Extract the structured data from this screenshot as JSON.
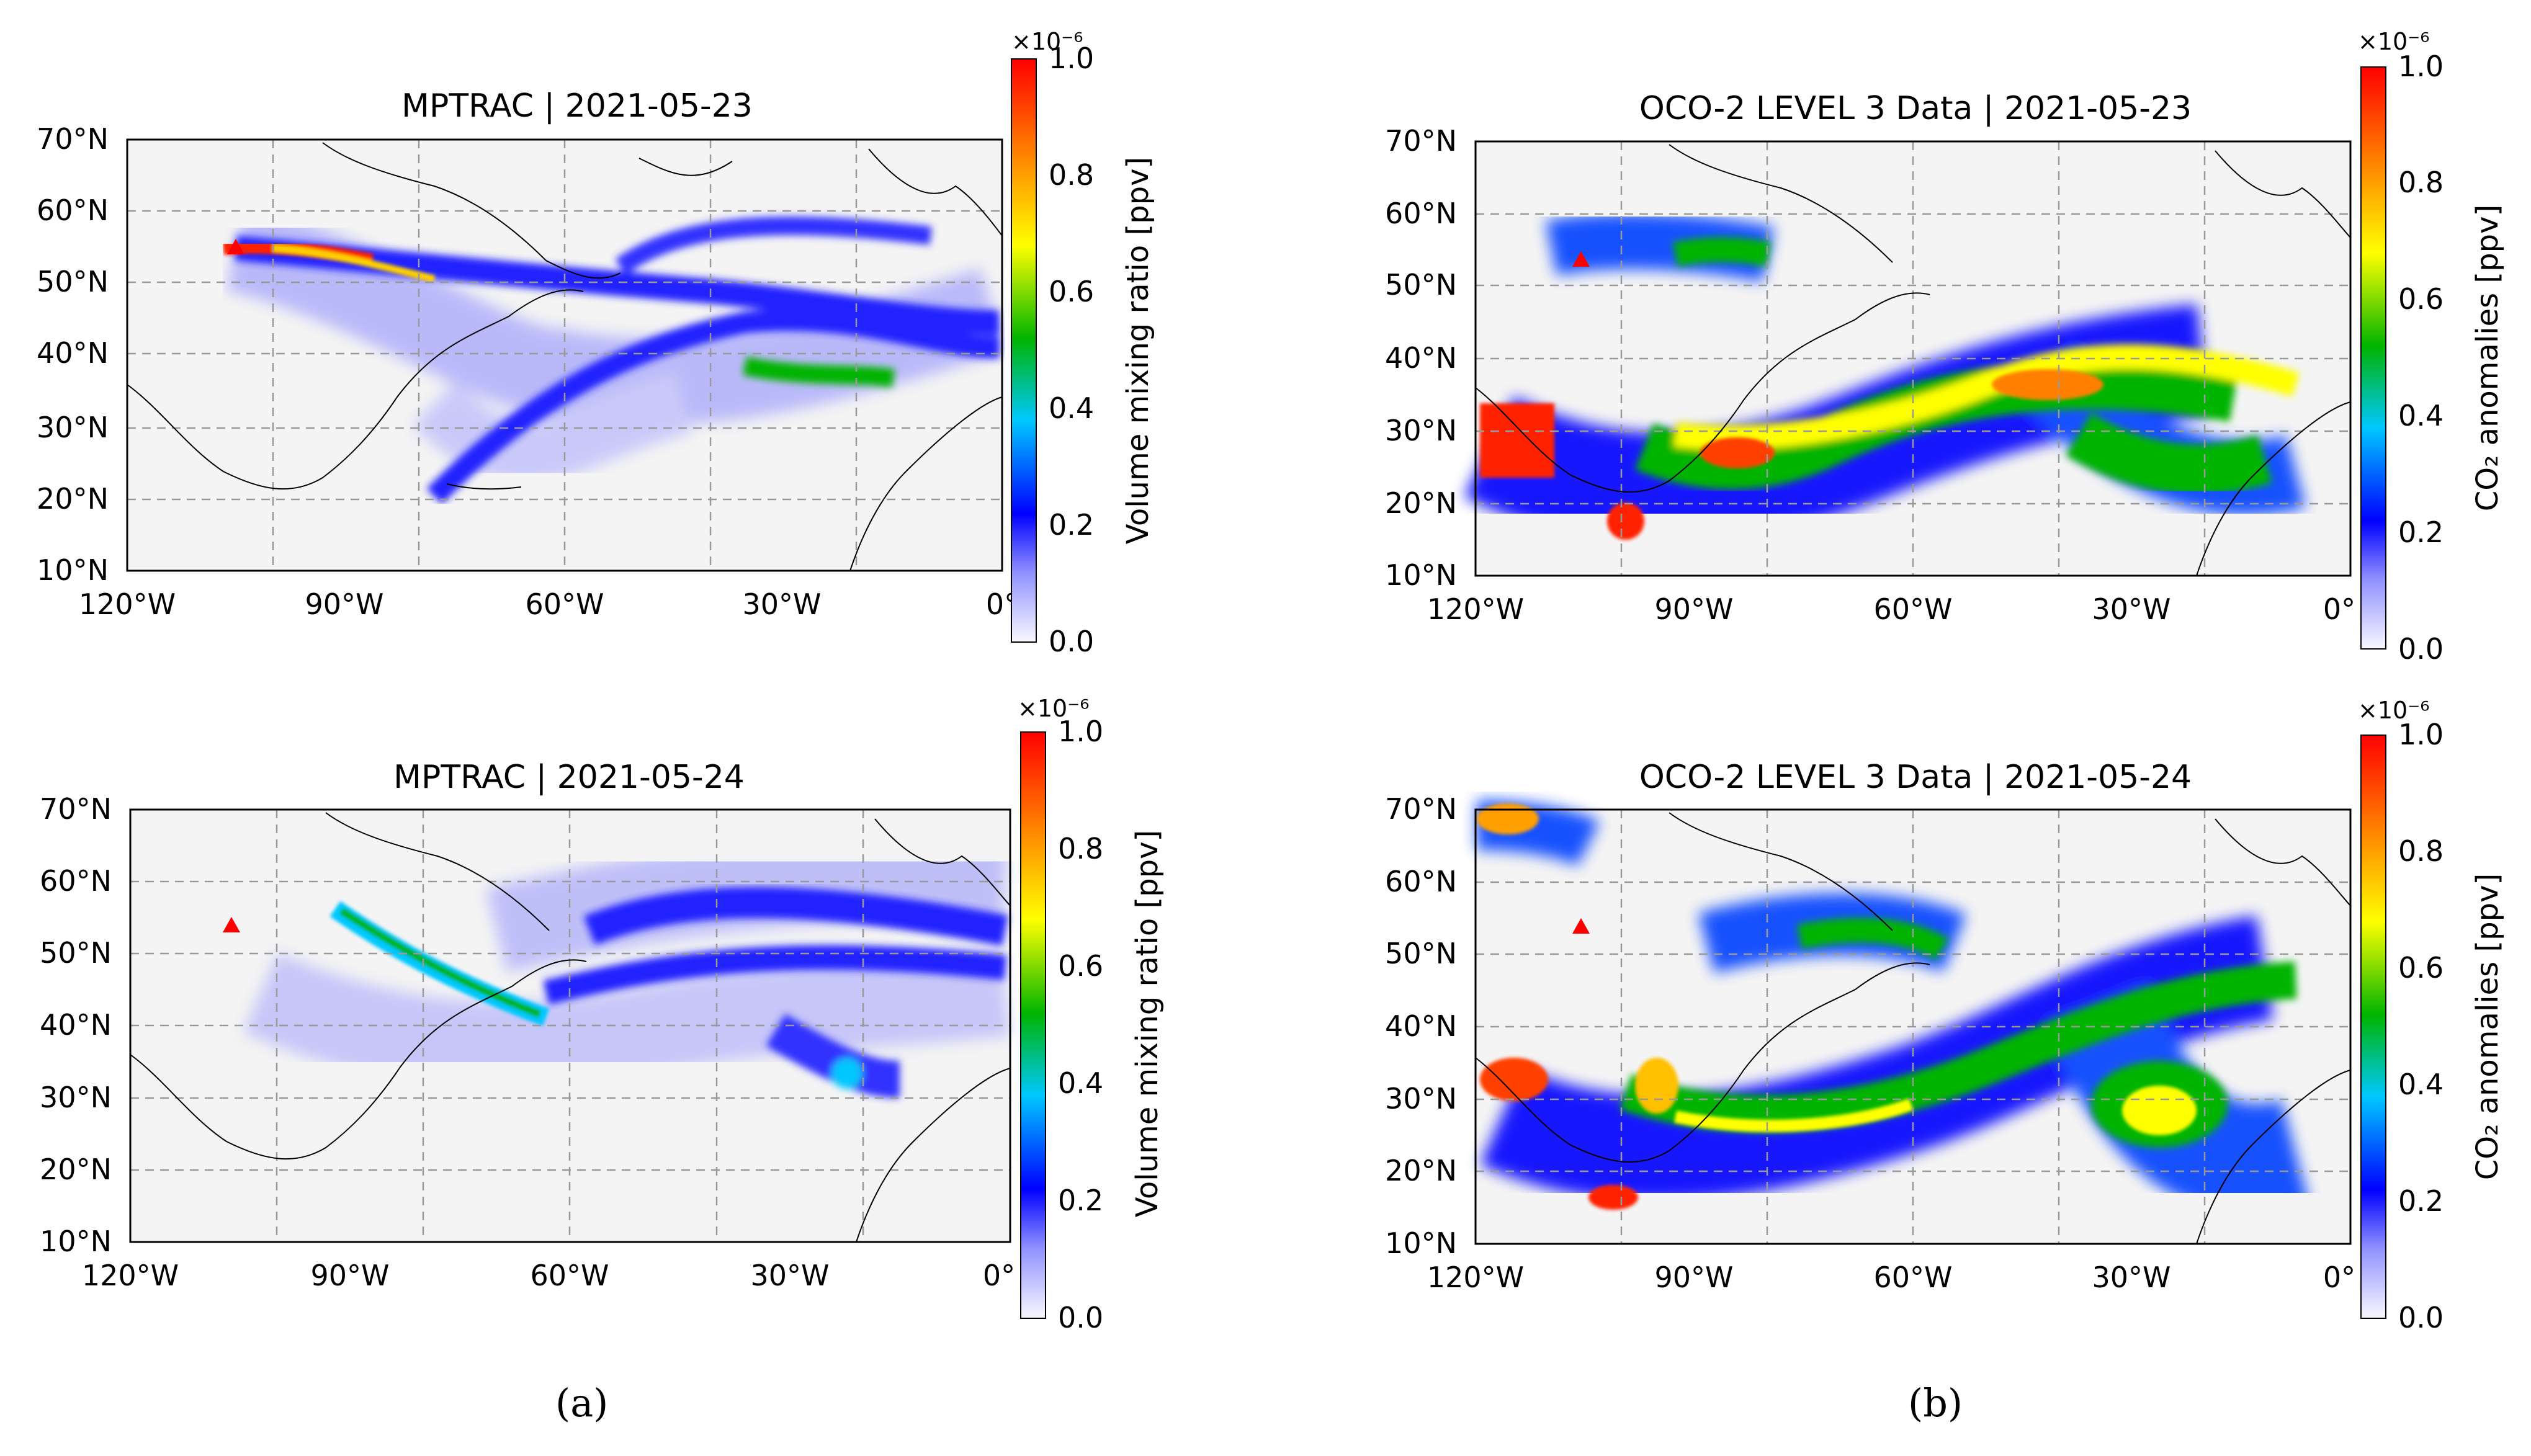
{
  "panels": [
    {
      "id": "a-top",
      "title": "MPTRAC | 2021-05-23",
      "colorbar": {
        "label": "Volume mixing ratio [ppv]",
        "multiplier": "×10⁻⁶",
        "ticks": [
          "0.0",
          "0.2",
          "0.4",
          "0.6",
          "0.8",
          "1.0"
        ]
      },
      "x_ticks": [
        "120°W",
        "90°W",
        "60°W",
        "30°W",
        "0°"
      ],
      "y_ticks": [
        "10°N",
        "20°N",
        "30°N",
        "40°N",
        "50°N",
        "60°N",
        "70°N"
      ],
      "source_marker": "red triangle"
    },
    {
      "id": "b-top",
      "title": "OCO-2 LEVEL 3 Data | 2021-05-23",
      "colorbar": {
        "label": "CO₂ anomalies [ppv]",
        "multiplier": "×10⁻⁶",
        "ticks": [
          "0.0",
          "0.2",
          "0.4",
          "0.6",
          "0.8",
          "1.0"
        ]
      },
      "x_ticks": [
        "120°W",
        "90°W",
        "60°W",
        "30°W",
        "0°"
      ],
      "y_ticks": [
        "10°N",
        "20°N",
        "30°N",
        "40°N",
        "50°N",
        "60°N",
        "70°N"
      ],
      "source_marker": "red triangle"
    },
    {
      "id": "a-bottom",
      "title": "MPTRAC | 2021-05-24",
      "colorbar": {
        "label": "Volume mixing ratio [ppv]",
        "multiplier": "×10⁻⁶",
        "ticks": [
          "0.0",
          "0.2",
          "0.4",
          "0.6",
          "0.8",
          "1.0"
        ]
      },
      "x_ticks": [
        "120°W",
        "90°W",
        "60°W",
        "30°W",
        "0°"
      ],
      "y_ticks": [
        "10°N",
        "20°N",
        "30°N",
        "40°N",
        "50°N",
        "60°N",
        "70°N"
      ],
      "source_marker": "red triangle"
    },
    {
      "id": "b-bottom",
      "title": "OCO-2 LEVEL 3 Data | 2021-05-24",
      "colorbar": {
        "label": "CO₂ anomalies [ppv]",
        "multiplier": "×10⁻⁶",
        "ticks": [
          "0.0",
          "0.2",
          "0.4",
          "0.6",
          "0.8",
          "1.0"
        ]
      },
      "x_ticks": [
        "120°W",
        "90°W",
        "60°W",
        "30°W",
        "0°"
      ],
      "y_ticks": [
        "10°N",
        "20°N",
        "30°N",
        "40°N",
        "50°N",
        "60°N",
        "70°N"
      ],
      "source_marker": "red triangle"
    }
  ],
  "captions": {
    "a": "(a)",
    "b": "(b)"
  },
  "colormap": [
    "#f5f5ff",
    "#0000ff",
    "#00c8ff",
    "#00b400",
    "#ffff00",
    "#ff8000",
    "#ff0000"
  ],
  "background_color": "#f4f4f4"
}
